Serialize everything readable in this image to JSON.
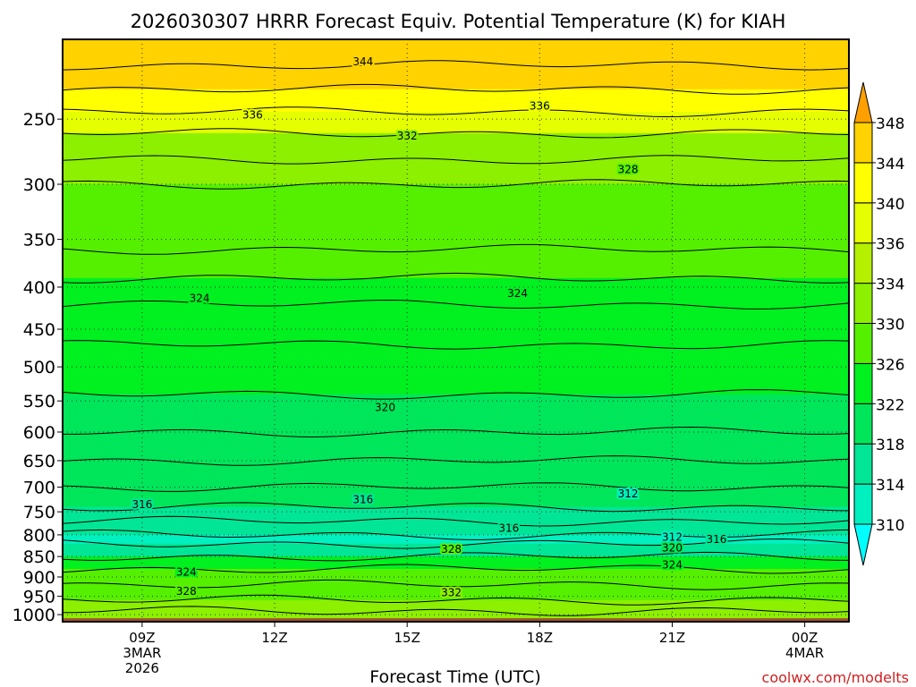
{
  "chart_data": {
    "type": "heatmap",
    "title": "2026030307 HRRR Forecast Equiv. Potential Temperature (K) for KIAH",
    "xlabel": "Forecast Time (UTC)",
    "ylabel": "",
    "y_scale": "log",
    "y_inverted": true,
    "x_ticks": [
      {
        "hour": 9,
        "lines": [
          "09Z",
          "3MAR",
          "2026"
        ]
      },
      {
        "hour": 12,
        "lines": [
          "12Z"
        ]
      },
      {
        "hour": 15,
        "lines": [
          "15Z"
        ]
      },
      {
        "hour": 18,
        "lines": [
          "18Z"
        ]
      },
      {
        "hour": 21,
        "lines": [
          "21Z"
        ]
      },
      {
        "hour": 24,
        "lines": [
          "00Z",
          "4MAR"
        ]
      }
    ],
    "y_ticks": [
      250,
      300,
      350,
      400,
      450,
      500,
      550,
      600,
      650,
      700,
      750,
      800,
      850,
      900,
      950,
      1000
    ],
    "colorbar": {
      "levels": [
        310,
        314,
        318,
        322,
        326,
        330,
        334,
        336,
        340,
        344,
        348
      ],
      "colors": [
        "#00ffff",
        "#00f0c0",
        "#00e696",
        "#00e65a",
        "#00f020",
        "#55f000",
        "#8cf000",
        "#b4f000",
        "#e6ff00",
        "#ffff00",
        "#ffd200",
        "#ffa000"
      ]
    },
    "bands": [
      {
        "p": 200,
        "value": 346
      },
      {
        "p": 215,
        "value": 344
      },
      {
        "p": 230,
        "value": 340
      },
      {
        "p": 245,
        "value": 337
      },
      {
        "p": 260,
        "value": 333
      },
      {
        "p": 280,
        "value": 330
      },
      {
        "p": 300,
        "value": 328
      },
      {
        "p": 360,
        "value": 327
      },
      {
        "p": 390,
        "value": 325
      },
      {
        "p": 420,
        "value": 323
      },
      {
        "p": 470,
        "value": 322
      },
      {
        "p": 540,
        "value": 321
      },
      {
        "p": 600,
        "value": 320
      },
      {
        "p": 650,
        "value": 319
      },
      {
        "p": 700,
        "value": 318
      },
      {
        "p": 740,
        "value": 317
      },
      {
        "p": 770,
        "value": 315
      },
      {
        "p": 800,
        "value": 313
      },
      {
        "p": 820,
        "value": 316
      },
      {
        "p": 850,
        "value": 323
      },
      {
        "p": 880,
        "value": 326
      },
      {
        "p": 920,
        "value": 329
      },
      {
        "p": 960,
        "value": 331
      },
      {
        "p": 990,
        "value": 333
      },
      {
        "p": 1020,
        "value": 334
      }
    ],
    "contour_labels": [
      {
        "text": "344",
        "hour": 14.0,
        "p": 213
      },
      {
        "text": "336",
        "hour": 11.5,
        "p": 247
      },
      {
        "text": "336",
        "hour": 18.0,
        "p": 241
      },
      {
        "text": "332",
        "hour": 15.0,
        "p": 262
      },
      {
        "text": "328",
        "hour": 20.0,
        "p": 288
      },
      {
        "text": "324",
        "hour": 10.3,
        "p": 413
      },
      {
        "text": "324",
        "hour": 17.5,
        "p": 407
      },
      {
        "text": "320",
        "hour": 14.5,
        "p": 560
      },
      {
        "text": "316",
        "hour": 9.0,
        "p": 735
      },
      {
        "text": "316",
        "hour": 14.0,
        "p": 725
      },
      {
        "text": "312",
        "hour": 20.0,
        "p": 713
      },
      {
        "text": "316",
        "hour": 17.3,
        "p": 785
      },
      {
        "text": "312",
        "hour": 21.0,
        "p": 805
      },
      {
        "text": "316",
        "hour": 22.0,
        "p": 810
      },
      {
        "text": "320",
        "hour": 21.0,
        "p": 830
      },
      {
        "text": "328",
        "hour": 16.0,
        "p": 833
      },
      {
        "text": "324",
        "hour": 21.0,
        "p": 870
      },
      {
        "text": "324",
        "hour": 10.0,
        "p": 888
      },
      {
        "text": "332",
        "hour": 16.0,
        "p": 940
      },
      {
        "text": "328",
        "hour": 10.0,
        "p": 937
      }
    ],
    "ground_color": "#a0522d",
    "grid": true,
    "legend_placement": "right"
  },
  "watermark": "coolwx.com/modelts"
}
